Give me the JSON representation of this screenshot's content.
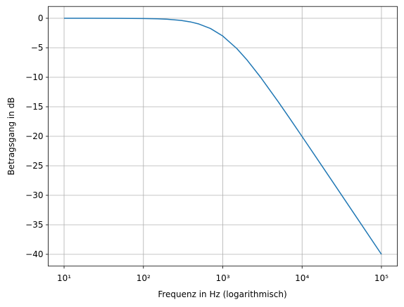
{
  "chart_data": {
    "type": "line",
    "xlabel": "Frequenz in Hz (logarithmisch)",
    "ylabel": "Betragsgang in dB",
    "x": [
      10,
      20,
      50,
      100,
      150,
      200,
      300,
      400,
      500,
      700,
      1000,
      1500,
      2000,
      3000,
      5000,
      7000,
      10000,
      20000,
      50000,
      100000
    ],
    "series": [
      {
        "color": "#1f77b4",
        "values": [
          0,
          -0.0017,
          -0.011,
          -0.043,
          -0.097,
          -0.17,
          -0.374,
          -0.645,
          -0.969,
          -1.732,
          -3.01,
          -5.119,
          -6.99,
          -10,
          -14.15,
          -16.99,
          -20.043,
          -26.031,
          -33.981,
          -40
        ]
      }
    ],
    "xscale": "log",
    "xlim": [
      6.31,
      158489
    ],
    "ylim": [
      -42,
      2
    ],
    "xticks": [
      {
        "value": 10,
        "label": "10¹"
      },
      {
        "value": 100,
        "label": "10²"
      },
      {
        "value": 1000,
        "label": "10³"
      },
      {
        "value": 10000,
        "label": "10⁴"
      },
      {
        "value": 100000,
        "label": "10⁵"
      }
    ],
    "yticks": [
      0,
      {
        "value": -5,
        "label": "−5"
      },
      {
        "value": -10,
        "label": "−10"
      },
      {
        "value": -15,
        "label": "−15"
      },
      {
        "value": -20,
        "label": "−20"
      },
      {
        "value": -25,
        "label": "−25"
      },
      {
        "value": -30,
        "label": "−30"
      },
      {
        "value": -35,
        "label": "−35"
      },
      {
        "value": -40,
        "label": "−40"
      }
    ],
    "grid": true
  }
}
